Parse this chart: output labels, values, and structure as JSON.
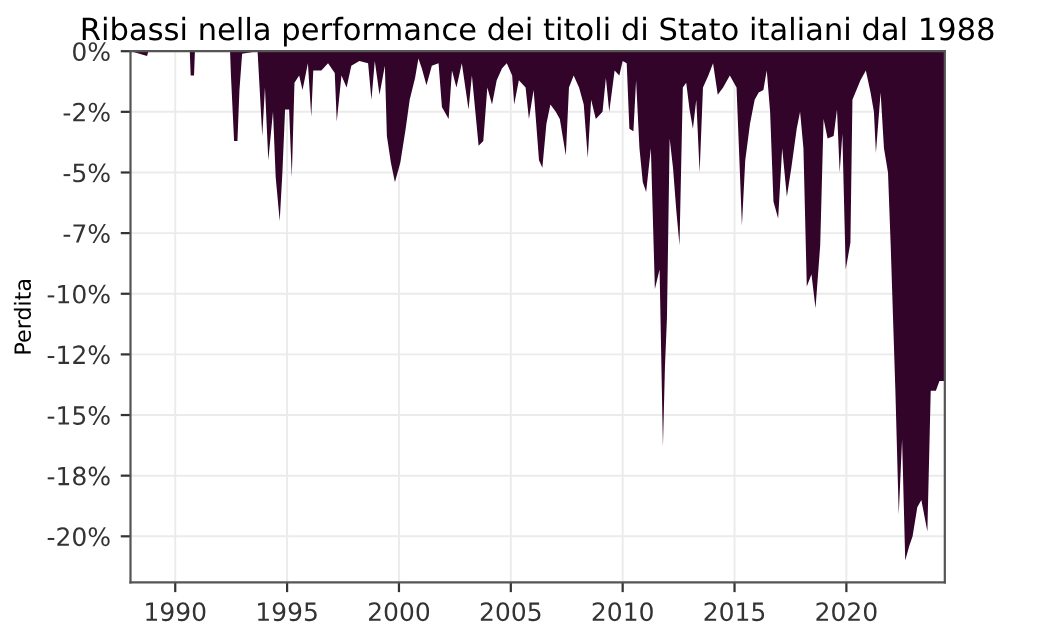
{
  "chart_data": {
    "type": "area",
    "title": "Ribassi nella performance dei titoli di Stato italiani dal 1988",
    "ylabel": "Perdita",
    "series": [
      {
        "color": "#33042a",
        "x": [
          1988.02,
          1988.74,
          1988.8,
          1990.65,
          1990.69,
          1990.84,
          1990.88,
          1992.45,
          1992.49,
          1992.63,
          1992.78,
          1992.87,
          1992.99,
          1993.68,
          1993.89,
          1994.01,
          1994.16,
          1994.37,
          1994.49,
          1994.67,
          1994.79,
          1994.91,
          1995.09,
          1995.21,
          1995.33,
          1995.54,
          1995.69,
          1995.93,
          1996.08,
          1996.17,
          1996.53,
          1996.83,
          1997.13,
          1997.22,
          1997.43,
          1997.66,
          1997.87,
          1998.23,
          1998.62,
          1998.77,
          1998.92,
          1999.13,
          1999.37,
          1999.46,
          1999.64,
          1999.82,
          2000.06,
          2000.3,
          2000.48,
          2000.72,
          2000.87,
          2001.02,
          2001.23,
          2001.47,
          2001.77,
          2001.92,
          2002.22,
          2002.37,
          2002.57,
          2002.81,
          2003.11,
          2003.26,
          2003.56,
          2003.77,
          2003.95,
          2004.16,
          2004.37,
          2004.61,
          2004.82,
          2005.06,
          2005.15,
          2005.36,
          2005.66,
          2005.81,
          2006.02,
          2006.26,
          2006.41,
          2006.59,
          2006.77,
          2007.01,
          2007.19,
          2007.46,
          2007.6,
          2007.81,
          2008.05,
          2008.26,
          2008.44,
          2008.59,
          2008.8,
          2009.1,
          2009.25,
          2009.4,
          2009.64,
          2009.85,
          2010.0,
          2010.18,
          2010.3,
          2010.48,
          2010.6,
          2010.75,
          2010.9,
          2011.05,
          2011.26,
          2011.44,
          2011.65,
          2011.8,
          2011.89,
          2011.98,
          2012.1,
          2012.25,
          2012.4,
          2012.54,
          2012.69,
          2012.84,
          2012.99,
          2013.14,
          2013.29,
          2013.44,
          2013.59,
          2013.83,
          2014.04,
          2014.25,
          2014.49,
          2014.79,
          2015.09,
          2015.24,
          2015.33,
          2015.48,
          2015.69,
          2015.9,
          2016.08,
          2016.29,
          2016.44,
          2016.59,
          2016.74,
          2016.95,
          2017.13,
          2017.34,
          2017.54,
          2017.78,
          2017.93,
          2018.08,
          2018.23,
          2018.44,
          2018.62,
          2018.83,
          2018.98,
          2019.16,
          2019.43,
          2019.58,
          2019.7,
          2019.82,
          2019.97,
          2020.18,
          2020.27,
          2020.63,
          2020.87,
          2021.08,
          2021.23,
          2021.32,
          2021.53,
          2021.68,
          2021.86,
          2021.98,
          2022.19,
          2022.34,
          2022.49,
          2022.63,
          2022.81,
          2022.96,
          2023.17,
          2023.35,
          2023.62,
          2023.77,
          2024.0,
          2024.16,
          2024.37
        ],
        "values": [
          0,
          -0.2,
          0,
          0,
          -1.0,
          -1.0,
          0,
          0,
          -1.0,
          -3.7,
          -3.7,
          -1.6,
          -0.1,
          0,
          -3.5,
          -1.5,
          -4.5,
          -2.5,
          -5.2,
          -7.0,
          -5.0,
          -2.4,
          -2.4,
          -5.2,
          -1.3,
          -1.0,
          -1.6,
          -0.5,
          -2.7,
          -0.8,
          -0.8,
          -0.5,
          -0.9,
          -2.9,
          -1.0,
          -1.5,
          -0.6,
          -0.4,
          -0.5,
          -2.0,
          -0.4,
          -1.8,
          -0.6,
          -3.5,
          -4.6,
          -5.4,
          -4.6,
          -3.2,
          -2.0,
          -1.1,
          -0.3,
          -0.7,
          -1.4,
          -0.6,
          -0.5,
          -2.3,
          -2.8,
          -0.8,
          -1.5,
          -0.5,
          -2.4,
          -1.0,
          -3.9,
          -3.7,
          -1.5,
          -2.2,
          -1.2,
          -0.7,
          -0.5,
          -1.0,
          -2.2,
          -1.2,
          -1.5,
          -2.8,
          -1.6,
          -4.5,
          -4.8,
          -3.0,
          -2.2,
          -2.5,
          -2.8,
          -4.3,
          -1.5,
          -1.0,
          -1.5,
          -2.2,
          -4.4,
          -2.0,
          -2.8,
          -2.5,
          -1.1,
          -2.5,
          -0.8,
          -1.0,
          -0.4,
          -0.5,
          -3.2,
          -3.3,
          -1.2,
          -4.0,
          -5.4,
          -5.8,
          -4.0,
          -9.8,
          -9.0,
          -16.3,
          -13.0,
          -11.0,
          -3.6,
          -4.8,
          -6.6,
          -8.0,
          -1.5,
          -1.3,
          -2.4,
          -3.2,
          -2.0,
          -5.0,
          -1.5,
          -1.0,
          -0.5,
          -1.8,
          -1.5,
          -1.0,
          -1.5,
          -5.0,
          -7.2,
          -4.5,
          -3.0,
          -2.0,
          -1.7,
          -1.6,
          -0.8,
          -2.5,
          -6.2,
          -6.9,
          -4.0,
          -6.0,
          -4.8,
          -3.2,
          -2.5,
          -4.0,
          -9.7,
          -9.2,
          -10.6,
          -8.0,
          -2.8,
          -3.6,
          -3.5,
          -2.4,
          -5.0,
          -3.4,
          -9.0,
          -7.9,
          -2.0,
          -1.2,
          -0.8,
          -1.7,
          -2.5,
          -4.2,
          -1.7,
          -4.0,
          -5.0,
          -8.0,
          -14.0,
          -19.1,
          -16.0,
          -21.0,
          -20.4,
          -20.0,
          -18.8,
          -18.5,
          -19.8,
          -14.0,
          -14.0,
          -13.6,
          -13.6
        ]
      }
    ],
    "xlim": [
      1988.0,
      2024.4
    ],
    "xticks": [
      1990,
      1995,
      2000,
      2005,
      2010,
      2015,
      2020
    ],
    "ylim": [
      -21.9,
      0
    ],
    "yticks": [
      {
        "value": 0,
        "label": "0%"
      },
      {
        "value": -2.5,
        "label": "-2%"
      },
      {
        "value": -5,
        "label": "-5%"
      },
      {
        "value": -7.5,
        "label": "-7%"
      },
      {
        "value": -10,
        "label": "-10%"
      },
      {
        "value": -12.5,
        "label": "-12%"
      },
      {
        "value": -15,
        "label": "-15%"
      },
      {
        "value": -17.5,
        "label": "-18%"
      },
      {
        "value": -20,
        "label": "-20%"
      }
    ],
    "grid": true
  }
}
